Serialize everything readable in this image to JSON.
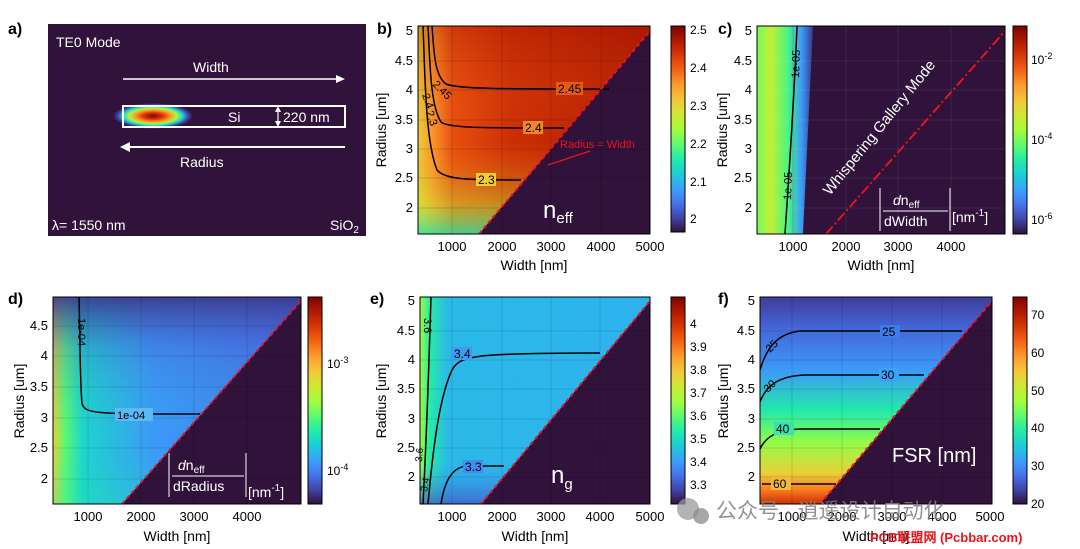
{
  "figure": {
    "colormap": [
      "#30123b",
      "#4145ab",
      "#4675ed",
      "#39a2fc",
      "#1bcfd4",
      "#24eca6",
      "#61fc6c",
      "#a4fc3b",
      "#d1e834",
      "#f3c63a",
      "#fe9b2d",
      "#f36315",
      "#d93806",
      "#b11901",
      "#7a0402"
    ],
    "background_color": "#30123b",
    "contour_color": "#000000",
    "diagonal_color": "#e8141e",
    "watermark_1": "公众号 · 逍遥设计自动化",
    "watermark_2": "PCB联盟网 (Pcbbar.com)"
  },
  "chart_data": [
    {
      "id": "a",
      "panel_label": "a)",
      "type": "mode_profile",
      "title": "TE0 Mode",
      "width_label": "Width",
      "radius_label": "Radius",
      "core_label": "Si",
      "thickness_label": "220 nm",
      "wavelength_label": "λ= 1550 nm",
      "cladding_label": "SiO",
      "cladding_subscript": "2"
    },
    {
      "id": "b",
      "panel_label": "b)",
      "type": "heatmap",
      "xlabel": "Width [nm]",
      "ylabel": "Radius [um]",
      "xlim": [
        300,
        5000
      ],
      "ylim": [
        1.5,
        5.05
      ],
      "x_ticks": [
        "1000",
        "2000",
        "3000",
        "4000",
        "5000"
      ],
      "y_ticks": [
        "2",
        "2.5",
        "3",
        "3.5",
        "4",
        "4.5",
        "5"
      ],
      "quantity": "n",
      "quantity_subscript": "eff",
      "colorbar": {
        "scale": "linear",
        "range": [
          1.95,
          2.5
        ],
        "ticks": [
          "2",
          "2.1",
          "2.2",
          "2.3",
          "2.4",
          "2.5"
        ]
      },
      "contours": [
        {
          "label": "2.3",
          "level": 2.3
        },
        {
          "label": "2.4",
          "level": 2.4
        },
        {
          "label": "2.45",
          "level": 2.45
        }
      ],
      "vertical_contour_labels": [
        "2.3",
        "2.4",
        "2.45"
      ],
      "annotation": "Radius = Width"
    },
    {
      "id": "c",
      "panel_label": "c)",
      "type": "heatmap",
      "xlabel": "Width [nm]",
      "ylabel": "Radius [um]",
      "xlim": [
        300,
        5000
      ],
      "ylim": [
        1.5,
        5.05
      ],
      "x_ticks": [
        "1000",
        "2000",
        "3000",
        "4000"
      ],
      "y_ticks": [
        "2",
        "2.5",
        "3",
        "3.5",
        "4",
        "4.5",
        "5"
      ],
      "quantity_prefix": "d",
      "quantity": "n",
      "quantity_subscript": "eff",
      "quantity_denominator": "dWidth",
      "unit": "[nm",
      "unit_superscript": "-1",
      "unit_close": "]",
      "colorbar": {
        "scale": "log",
        "range": [
          1e-06,
          0.03
        ],
        "tick_base": "10",
        "tick_exponents": [
          "-6",
          "-4",
          "-2"
        ]
      },
      "contours": [
        {
          "label": "1e-05",
          "level": 1e-05
        },
        {
          "label": "1e-05",
          "level": 1e-05
        }
      ],
      "annotation": "Whispering Gallery Mode"
    },
    {
      "id": "d",
      "panel_label": "d)",
      "type": "heatmap",
      "xlabel": "Width [nm]",
      "ylabel": "Radius [um]",
      "xlim": [
        300,
        5000
      ],
      "ylim": [
        1.6,
        4.95
      ],
      "x_ticks": [
        "1000",
        "2000",
        "3000",
        "4000"
      ],
      "y_ticks": [
        "2",
        "2.5",
        "3",
        "3.5",
        "4",
        "4.5"
      ],
      "quantity_prefix": "d",
      "quantity": "n",
      "quantity_subscript": "eff",
      "quantity_denominator": "dRadius",
      "unit": "[nm",
      "unit_superscript": "-1",
      "unit_close": "]",
      "colorbar": {
        "scale": "log",
        "range": [
          2e-05,
          0.01
        ],
        "tick_base": "10",
        "tick_exponents": [
          "-4",
          "-3"
        ]
      },
      "contours": [
        {
          "label": "1e-04",
          "level": 0.0001
        },
        {
          "label": "1e-04",
          "level": 0.0001
        }
      ]
    },
    {
      "id": "e",
      "panel_label": "e)",
      "type": "heatmap",
      "xlabel": "Width [nm]",
      "ylabel": "Radius [um]",
      "xlim": [
        300,
        5000
      ],
      "ylim": [
        1.5,
        5.05
      ],
      "x_ticks": [
        "1000",
        "2000",
        "3000",
        "4000",
        "5000"
      ],
      "y_ticks": [
        "2",
        "2.5",
        "3",
        "3.5",
        "4",
        "4.5",
        "5"
      ],
      "quantity": "n",
      "quantity_subscript": "g",
      "colorbar": {
        "scale": "linear",
        "range": [
          3.2,
          4.1
        ],
        "ticks": [
          "3.3",
          "3.4",
          "3.5",
          "3.6",
          "3.7",
          "3.8",
          "3.9",
          "4"
        ]
      },
      "contours": [
        {
          "label": "3.3",
          "level": 3.3
        },
        {
          "label": "3.4",
          "level": 3.4
        },
        {
          "label": "3.6",
          "level": 3.6
        }
      ],
      "vertical_contour_labels": [
        "3.4",
        "3.6"
      ]
    },
    {
      "id": "f",
      "panel_label": "f)",
      "type": "heatmap",
      "xlabel": "Width [nm]",
      "ylabel": "Radius [um]",
      "xlim": [
        300,
        5000
      ],
      "ylim": [
        1.5,
        5.05
      ],
      "x_ticks": [
        "1000",
        "2000",
        "3000",
        "4000",
        "5000"
      ],
      "y_ticks": [
        "2",
        "2.5",
        "3",
        "3.5",
        "4",
        "4.5",
        "5"
      ],
      "quantity": "FSR [nm]",
      "colorbar": {
        "scale": "linear",
        "range": [
          20,
          75
        ],
        "ticks": [
          "20",
          "30",
          "40",
          "50",
          "60",
          "70"
        ]
      },
      "contours": [
        {
          "label": "25",
          "level": 25
        },
        {
          "label": "30",
          "level": 30
        },
        {
          "label": "40",
          "level": 40
        },
        {
          "label": "60",
          "level": 60
        }
      ],
      "vertical_contour_labels": [
        "25",
        "30"
      ]
    }
  ]
}
